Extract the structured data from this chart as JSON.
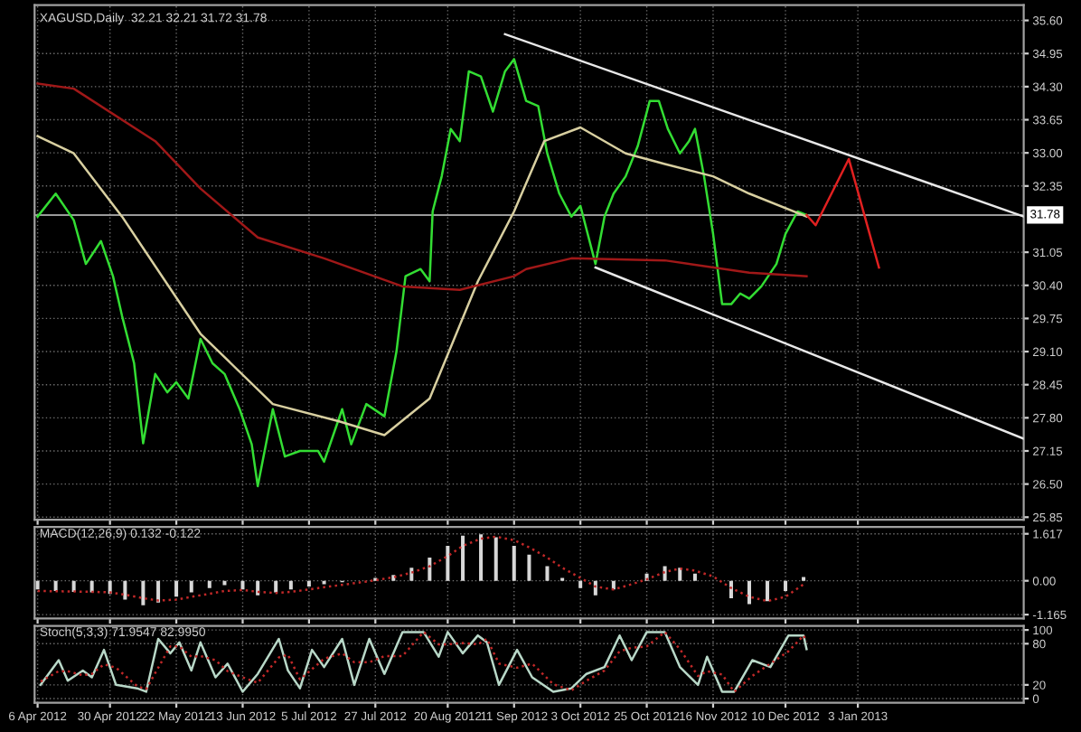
{
  "chart_data": [
    {
      "type": "line",
      "title": "XAGUSD,Daily  32.21 32.21 31.72 31.78",
      "xlim": [
        "2012-04-05",
        "2013-02-27"
      ],
      "ylim": [
        25.8,
        35.9
      ],
      "xticks": [
        {
          "value": "2012-04-06",
          "label": null
        },
        {
          "value": "2012-04-30",
          "label": null
        },
        {
          "value": "2012-05-22",
          "label": null
        },
        {
          "value": "2012-06-13",
          "label": null
        },
        {
          "value": "2012-07-05",
          "label": null
        },
        {
          "value": "2012-07-27",
          "label": null
        },
        {
          "value": "2012-08-20",
          "label": null
        },
        {
          "value": "2012-09-11",
          "label": null
        },
        {
          "value": "2012-10-03",
          "label": null
        },
        {
          "value": "2012-10-25",
          "label": null
        },
        {
          "value": "2012-11-16",
          "label": null
        },
        {
          "value": "2012-12-10",
          "label": null
        },
        {
          "value": "2013-01-03",
          "label": null
        }
      ],
      "yticks": [
        {
          "value": 25.85,
          "label": "25.85"
        },
        {
          "value": 26.5,
          "label": "26.50"
        },
        {
          "value": 27.15,
          "label": "27.15"
        },
        {
          "value": 27.8,
          "label": "27.80"
        },
        {
          "value": 28.45,
          "label": "28.45"
        },
        {
          "value": 29.1,
          "label": "29.10"
        },
        {
          "value": 29.75,
          "label": "29.75"
        },
        {
          "value": 30.4,
          "label": "30.40"
        },
        {
          "value": 31.05,
          "label": "31.05"
        },
        {
          "value": 32.35,
          "label": "32.35"
        },
        {
          "value": 33.0,
          "label": "33.00"
        },
        {
          "value": 33.65,
          "label": "33.65"
        },
        {
          "value": 34.3,
          "label": "34.30"
        },
        {
          "value": 34.95,
          "label": "34.95"
        },
        {
          "value": 35.6,
          "label": "35.60"
        }
      ],
      "tick_labels": "y",
      "grid": true,
      "legend": false,
      "ref_lines": [
        {
          "axis": "y",
          "value": 31.78,
          "label": "31.78",
          "color": "#9a9a9a"
        }
      ],
      "series": [
        {
          "color": "#33dd33",
          "x": [
            "2012-04-06",
            "2012-04-12",
            "2012-04-18",
            "2012-04-22",
            "2012-04-27",
            "2012-05-01",
            "2012-05-04",
            "2012-05-08",
            "2012-05-11",
            "2012-05-15",
            "2012-05-19",
            "2012-05-22",
            "2012-05-26",
            "2012-05-30",
            "2012-06-03",
            "2012-06-07",
            "2012-06-12",
            "2012-06-16",
            "2012-06-18",
            "2012-06-23",
            "2012-06-27",
            "2012-07-02",
            "2012-07-08",
            "2012-07-10",
            "2012-07-16",
            "2012-07-19",
            "2012-07-24",
            "2012-07-30",
            "2012-08-03",
            "2012-08-06",
            "2012-08-11",
            "2012-08-14",
            "2012-08-15",
            "2012-08-18",
            "2012-08-21",
            "2012-08-24",
            "2012-08-27",
            "2012-08-31",
            "2012-09-04",
            "2012-09-08",
            "2012-09-11",
            "2012-09-15",
            "2012-09-19",
            "2012-09-22",
            "2012-09-26",
            "2012-09-30",
            "2012-10-03",
            "2012-10-08",
            "2012-10-11",
            "2012-10-14",
            "2012-10-18",
            "2012-10-22",
            "2012-10-26",
            "2012-10-29",
            "2012-11-01",
            "2012-11-05",
            "2012-11-08",
            "2012-11-10",
            "2012-11-13",
            "2012-11-16",
            "2012-11-19",
            "2012-11-22",
            "2012-11-25",
            "2012-11-28",
            "2012-12-02",
            "2012-12-07",
            "2012-12-10",
            "2012-12-14",
            "2012-12-17"
          ],
          "values": [
            31.75,
            32.2,
            31.68,
            30.82,
            31.27,
            30.58,
            29.8,
            28.87,
            27.3,
            28.66,
            28.3,
            28.5,
            28.18,
            29.35,
            28.87,
            28.66,
            27.97,
            27.28,
            26.46,
            27.97,
            27.04,
            27.15,
            27.15,
            26.94,
            27.97,
            27.28,
            28.07,
            27.83,
            29.1,
            30.58,
            30.72,
            30.48,
            31.85,
            32.54,
            33.47,
            33.23,
            34.6,
            34.5,
            33.81,
            34.6,
            34.84,
            34.02,
            33.92,
            32.99,
            32.2,
            31.75,
            31.96,
            30.82,
            31.75,
            32.2,
            32.54,
            33.13,
            34.02,
            34.02,
            33.47,
            32.99,
            33.23,
            33.47,
            32.54,
            31.41,
            30.03,
            30.03,
            30.24,
            30.14,
            30.38,
            30.82,
            31.41,
            31.85,
            31.78
          ]
        },
        {
          "color": "#d8cfa0",
          "x": [
            "2012-04-06",
            "2012-04-18",
            "2012-05-04",
            "2012-05-30",
            "2012-06-23",
            "2012-07-15",
            "2012-07-30",
            "2012-08-14",
            "2012-08-30",
            "2012-09-11",
            "2012-09-21",
            "2012-10-03",
            "2012-10-18",
            "2012-10-31",
            "2012-11-16",
            "2012-11-28",
            "2012-12-17"
          ],
          "values": [
            33.33,
            32.99,
            31.75,
            29.45,
            28.07,
            27.73,
            27.46,
            28.18,
            30.48,
            31.85,
            33.23,
            33.5,
            32.99,
            32.78,
            32.54,
            32.2,
            31.75
          ]
        },
        {
          "color": "#a01818",
          "x": [
            "2012-04-06",
            "2012-04-18",
            "2012-05-15",
            "2012-05-30",
            "2012-06-18",
            "2012-07-10",
            "2012-08-05",
            "2012-08-24",
            "2012-09-11",
            "2012-09-15",
            "2012-09-30",
            "2012-10-31",
            "2012-11-28",
            "2012-12-17"
          ],
          "values": [
            34.36,
            34.26,
            33.23,
            32.3,
            31.34,
            30.93,
            30.38,
            30.31,
            30.58,
            30.72,
            30.93,
            30.89,
            30.65,
            30.58
          ]
        },
        {
          "color": "#e8e8e8",
          "x": [
            "2012-09-08",
            "2013-02-27"
          ],
          "values": [
            35.33,
            31.75
          ]
        },
        {
          "color": "#e8e8e8",
          "x": [
            "2012-10-08",
            "2013-02-27"
          ],
          "values": [
            30.75,
            27.39
          ]
        },
        {
          "color": "#e02020",
          "x": [
            "2012-12-17",
            "2012-12-20",
            "2012-12-31",
            "2013-01-10"
          ],
          "values": [
            31.78,
            31.58,
            32.88,
            30.75
          ]
        }
      ]
    },
    {
      "type": "bar",
      "title": "MACD(12,26,9) 0.132 -0.122",
      "xlim": [
        "2012-04-05",
        "2013-02-27"
      ],
      "ylim": [
        -1.3,
        1.85
      ],
      "xticks": [
        {
          "value": "2012-04-06",
          "label": null
        },
        {
          "value": "2012-04-30",
          "label": null
        },
        {
          "value": "2012-05-22",
          "label": null
        },
        {
          "value": "2012-06-13",
          "label": null
        },
        {
          "value": "2012-07-05",
          "label": null
        },
        {
          "value": "2012-07-27",
          "label": null
        },
        {
          "value": "2012-08-20",
          "label": null
        },
        {
          "value": "2012-09-11",
          "label": null
        },
        {
          "value": "2012-10-03",
          "label": null
        },
        {
          "value": "2012-10-25",
          "label": null
        },
        {
          "value": "2012-11-16",
          "label": null
        },
        {
          "value": "2012-12-10",
          "label": null
        },
        {
          "value": "2013-01-03",
          "label": null
        }
      ],
      "yticks": [
        {
          "value": -1.165,
          "label": "-1.165"
        },
        {
          "value": 0,
          "label": "0.00"
        },
        {
          "value": 1.617,
          "label": "1.617"
        }
      ],
      "tick_labels": "y",
      "grid": true,
      "legend": false,
      "x": [
        "2012-04-06",
        "2012-04-12",
        "2012-04-18",
        "2012-04-24",
        "2012-04-30",
        "2012-05-05",
        "2012-05-11",
        "2012-05-16",
        "2012-05-22",
        "2012-05-27",
        "2012-06-02",
        "2012-06-07",
        "2012-06-13",
        "2012-06-18",
        "2012-06-24",
        "2012-06-29",
        "2012-07-05",
        "2012-07-10",
        "2012-07-16",
        "2012-07-21",
        "2012-07-27",
        "2012-08-02",
        "2012-08-08",
        "2012-08-14",
        "2012-08-20",
        "2012-08-25",
        "2012-08-31",
        "2012-09-05",
        "2012-09-11",
        "2012-09-16",
        "2012-09-22",
        "2012-09-27",
        "2012-10-03",
        "2012-10-08",
        "2012-10-14",
        "2012-10-19",
        "2012-10-25",
        "2012-10-31",
        "2012-11-05",
        "2012-11-10",
        "2012-11-16",
        "2012-11-22",
        "2012-11-28",
        "2012-12-04",
        "2012-12-10",
        "2012-12-16"
      ],
      "series": [
        {
          "type": "bar",
          "color": "#d8d8d8",
          "values": [
            -0.3,
            -0.35,
            -0.38,
            -0.4,
            -0.45,
            -0.65,
            -0.84,
            -0.75,
            -0.55,
            -0.4,
            -0.25,
            -0.15,
            -0.3,
            -0.5,
            -0.4,
            -0.3,
            -0.2,
            -0.12,
            -0.05,
            0.0,
            0.1,
            0.2,
            0.45,
            0.8,
            1.2,
            1.55,
            1.6,
            1.5,
            1.2,
            0.9,
            0.5,
            0.1,
            -0.25,
            -0.5,
            -0.3,
            0.0,
            0.25,
            0.5,
            0.45,
            0.25,
            0.0,
            -0.6,
            -0.8,
            -0.7,
            -0.35,
            0.13
          ]
        },
        {
          "type": "line",
          "color": "#c02828",
          "line_style": "dotted",
          "values": [
            -0.35,
            -0.36,
            -0.37,
            -0.38,
            -0.4,
            -0.48,
            -0.6,
            -0.68,
            -0.65,
            -0.55,
            -0.45,
            -0.35,
            -0.32,
            -0.38,
            -0.42,
            -0.38,
            -0.3,
            -0.22,
            -0.14,
            -0.07,
            0.02,
            0.12,
            0.28,
            0.5,
            0.85,
            1.2,
            1.45,
            1.52,
            1.4,
            1.15,
            0.8,
            0.45,
            0.1,
            -0.2,
            -0.3,
            -0.15,
            0.05,
            0.3,
            0.42,
            0.35,
            0.15,
            -0.25,
            -0.55,
            -0.7,
            -0.55,
            -0.12
          ]
        }
      ]
    },
    {
      "type": "line",
      "title": "Stoch(5,3,3) 71.9547 82.9950",
      "xlim": [
        "2012-04-05",
        "2013-02-27"
      ],
      "ylim": [
        -6,
        106
      ],
      "xticks": [
        {
          "value": "2012-04-06",
          "label": "6 Apr 2012"
        },
        {
          "value": "2012-04-30",
          "label": "30 Apr 2012"
        },
        {
          "value": "2012-05-22",
          "label": "22 May 2012"
        },
        {
          "value": "2012-06-13",
          "label": "13 Jun 2012"
        },
        {
          "value": "2012-07-05",
          "label": "5 Jul 2012"
        },
        {
          "value": "2012-07-27",
          "label": "27 Jul 2012"
        },
        {
          "value": "2012-08-20",
          "label": "20 Aug 2012"
        },
        {
          "value": "2012-09-11",
          "label": "11 Sep 2012"
        },
        {
          "value": "2012-10-03",
          "label": "3 Oct 2012"
        },
        {
          "value": "2012-10-25",
          "label": "25 Oct 2012"
        },
        {
          "value": "2012-11-16",
          "label": "16 Nov 2012"
        },
        {
          "value": "2012-12-10",
          "label": "10 Dec 2012"
        },
        {
          "value": "2013-01-03",
          "label": "3 Jan 2013"
        }
      ],
      "yticks": [
        0,
        20,
        80,
        100
      ],
      "grid": true,
      "legend": false,
      "x": [
        "2012-04-07",
        "2012-04-13",
        "2012-04-16",
        "2012-04-21",
        "2012-04-24",
        "2012-04-28",
        "2012-05-02",
        "2012-05-09",
        "2012-05-12",
        "2012-05-16",
        "2012-05-20",
        "2012-05-23",
        "2012-05-27",
        "2012-05-30",
        "2012-06-04",
        "2012-06-08",
        "2012-06-13",
        "2012-06-18",
        "2012-06-25",
        "2012-06-28",
        "2012-07-02",
        "2012-07-06",
        "2012-07-10",
        "2012-07-16",
        "2012-07-20",
        "2012-07-25",
        "2012-07-30",
        "2012-08-05",
        "2012-08-12",
        "2012-08-17",
        "2012-08-20",
        "2012-08-25",
        "2012-08-30",
        "2012-09-02",
        "2012-09-06",
        "2012-09-12",
        "2012-09-17",
        "2012-09-24",
        "2012-09-30",
        "2012-10-05",
        "2012-10-11",
        "2012-10-16",
        "2012-10-20",
        "2012-10-25",
        "2012-10-31",
        "2012-11-05",
        "2012-11-11",
        "2012-11-14",
        "2012-11-19",
        "2012-11-23",
        "2012-11-29",
        "2012-12-05",
        "2012-12-11",
        "2012-12-16",
        "2012-12-17"
      ],
      "series": [
        {
          "color": "#b8d8c8",
          "values": [
            20,
            56,
            26,
            41,
            31,
            71,
            20,
            15,
            10,
            87,
            66,
            82,
            41,
            82,
            31,
            51,
            10,
            36,
            87,
            41,
            15,
            71,
            46,
            87,
            20,
            87,
            36,
            97,
            97,
            61,
            97,
            66,
            92,
            82,
            20,
            71,
            31,
            10,
            15,
            36,
            46,
            92,
            56,
            97,
            97,
            46,
            20,
            61,
            10,
            10,
            56,
            46,
            92,
            92,
            72
          ]
        },
        {
          "color": "#c02828",
          "line_style": "dotted",
          "values": [
            25,
            40,
            40,
            34,
            36,
            50,
            45,
            18,
            14,
            45,
            76,
            76,
            61,
            62,
            56,
            40,
            31,
            23,
            60,
            64,
            28,
            43,
            58,
            66,
            53,
            53,
            62,
            62,
            97,
            79,
            79,
            81,
            79,
            87,
            51,
            45,
            51,
            21,
            12,
            26,
            41,
            69,
            74,
            76,
            97,
            72,
            33,
            40,
            35,
            10,
            33,
            51,
            69,
            92,
            83
          ]
        }
      ]
    }
  ]
}
